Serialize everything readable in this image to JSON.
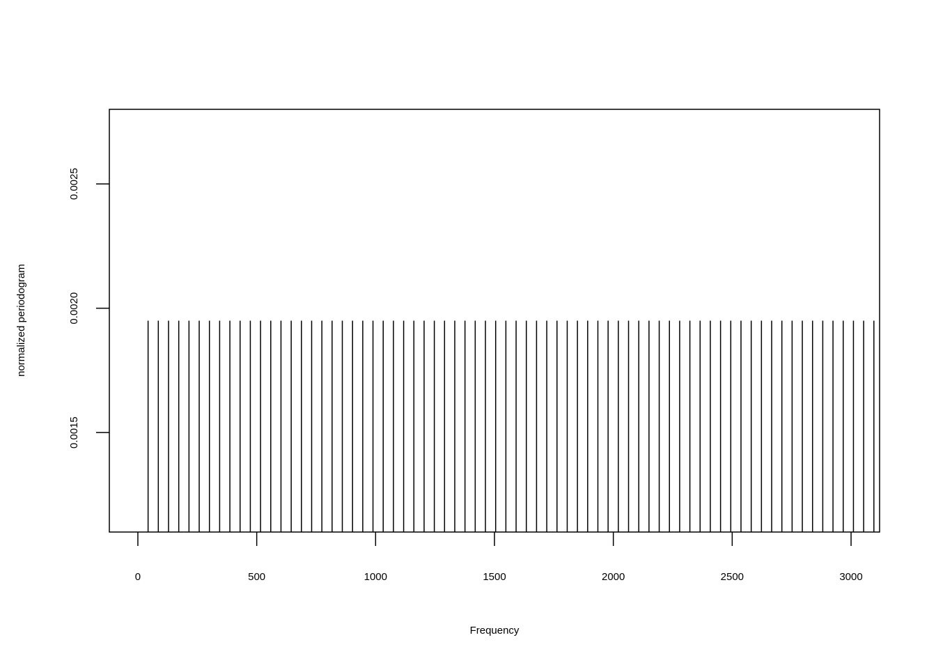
{
  "chart_data": {
    "type": "bar",
    "style": "vertical-lines",
    "title": "",
    "xlabel": "Frequency",
    "ylabel": "normalized periodogram",
    "xlim": [
      -120,
      3120
    ],
    "ylim": [
      0.0011,
      0.0028
    ],
    "baseline": 0.0011,
    "x_ticks": [
      0,
      500,
      1000,
      1500,
      2000,
      2500,
      3000
    ],
    "x_tick_labels": [
      "0",
      "500",
      "1000",
      "1500",
      "2000",
      "2500",
      "3000"
    ],
    "y_ticks": [
      0.0015,
      0.002,
      0.0025
    ],
    "y_tick_labels": [
      "0.0015",
      "0.0020",
      "0.0025"
    ],
    "x": [
      43,
      86,
      129,
      172,
      215,
      258,
      301,
      344,
      387,
      430,
      473,
      516,
      559,
      602,
      645,
      688,
      731,
      774,
      817,
      860,
      903,
      946,
      989,
      1032,
      1075,
      1118,
      1161,
      1204,
      1247,
      1290,
      1333,
      1376,
      1419,
      1462,
      1505,
      1548,
      1591,
      1634,
      1677,
      1720,
      1763,
      1806,
      1849,
      1892,
      1935,
      1978,
      2021,
      2064,
      2107,
      2150,
      2193,
      2236,
      2279,
      2322,
      2365,
      2408,
      2451,
      2494,
      2537,
      2580,
      2623,
      2666,
      2709,
      2752,
      2795,
      2838,
      2881,
      2924,
      2967,
      3010,
      3053,
      3096
    ],
    "values": [
      0.00195,
      0.00195,
      0.00195,
      0.00195,
      0.00195,
      0.00195,
      0.00195,
      0.00195,
      0.00195,
      0.00195,
      0.00195,
      0.00195,
      0.00195,
      0.00195,
      0.00195,
      0.00195,
      0.00195,
      0.00195,
      0.00195,
      0.00195,
      0.00195,
      0.00195,
      0.00195,
      0.00195,
      0.00195,
      0.00195,
      0.00195,
      0.00195,
      0.00195,
      0.00195,
      0.00195,
      0.00195,
      0.00195,
      0.00195,
      0.00195,
      0.00195,
      0.00195,
      0.00195,
      0.00195,
      0.00195,
      0.00195,
      0.00195,
      0.00195,
      0.00195,
      0.00195,
      0.00195,
      0.00195,
      0.00195,
      0.00195,
      0.00195,
      0.00195,
      0.00195,
      0.00195,
      0.00195,
      0.00195,
      0.00195,
      0.00195,
      0.00195,
      0.00195,
      0.00195,
      0.00195,
      0.00195,
      0.00195,
      0.00195,
      0.00195,
      0.00195,
      0.00195,
      0.00195,
      0.00195,
      0.00195,
      0.00195,
      0.00195
    ],
    "grid": false,
    "legend": "none",
    "color": "#000000"
  }
}
